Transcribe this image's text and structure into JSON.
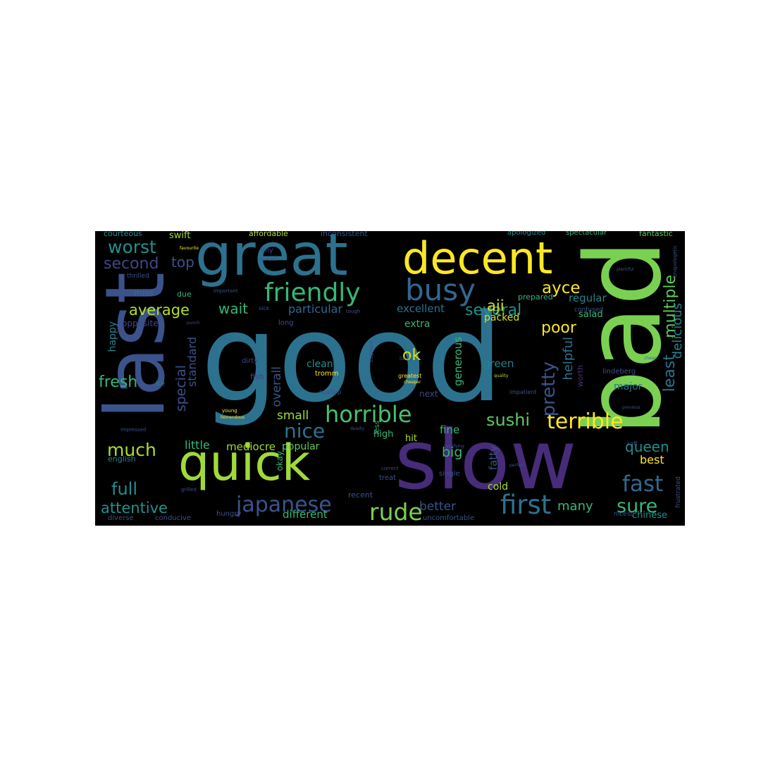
{
  "word_cloud": {
    "background": "#000000",
    "words": [
      {
        "text": "good",
        "color": "#2c728e"
      },
      {
        "text": "slow",
        "color": "#472c7a"
      },
      {
        "text": "bad",
        "color": "#7ad151"
      },
      {
        "text": "last",
        "color": "#3b528b"
      },
      {
        "text": "great",
        "color": "#2c728e"
      },
      {
        "text": "quick",
        "color": "#a0da39"
      },
      {
        "text": "decent",
        "color": "#fde725"
      },
      {
        "text": "busy",
        "color": "#31688e"
      },
      {
        "text": "friendly",
        "color": "#35b779"
      },
      {
        "text": "horrible",
        "color": "#4ac16d"
      },
      {
        "text": "terrible",
        "color": "#fde725"
      },
      {
        "text": "first",
        "color": "#2c728e"
      },
      {
        "text": "japanese",
        "color": "#3b528b"
      },
      {
        "text": "rude",
        "color": "#7ad151"
      },
      {
        "text": "nice",
        "color": "#2c728e"
      },
      {
        "text": "sure",
        "color": "#35b779"
      },
      {
        "text": "fast",
        "color": "#31688e"
      },
      {
        "text": "worst",
        "color": "#21908d"
      },
      {
        "text": "much",
        "color": "#aadc32"
      },
      {
        "text": "attentive",
        "color": "#21908d"
      },
      {
        "text": "full",
        "color": "#21908d"
      },
      {
        "text": "sushi",
        "color": "#5ec962"
      },
      {
        "text": "pretty",
        "color": "#3b528b"
      },
      {
        "text": "average",
        "color": "#b5de2b"
      },
      {
        "text": "fresh",
        "color": "#35b779"
      },
      {
        "text": "several",
        "color": "#21908d"
      },
      {
        "text": "second",
        "color": "#414487"
      },
      {
        "text": "top",
        "color": "#3b528b"
      },
      {
        "text": "poor",
        "color": "#fde725"
      },
      {
        "text": "wait",
        "color": "#35b779"
      },
      {
        "text": "ayce",
        "color": "#fde725"
      },
      {
        "text": "aji",
        "color": "#d8e219"
      },
      {
        "text": "ok",
        "color": "#d8e219"
      },
      {
        "text": "least",
        "color": "#2c728e"
      },
      {
        "text": "multiple",
        "color": "#5ec962"
      },
      {
        "text": "delicious",
        "color": "#26828e"
      },
      {
        "text": "special",
        "color": "#3b528b"
      },
      {
        "text": "big",
        "color": "#35b779"
      },
      {
        "text": "queen",
        "color": "#21908d"
      },
      {
        "text": "many",
        "color": "#35b779"
      },
      {
        "text": "better",
        "color": "#3b528b"
      },
      {
        "text": "small",
        "color": "#a0da39"
      },
      {
        "text": "helpful",
        "color": "#2c728e"
      },
      {
        "text": "particular",
        "color": "#31688e"
      },
      {
        "text": "excellent",
        "color": "#2c728e"
      },
      {
        "text": "standard",
        "color": "#3b528b"
      },
      {
        "text": "overall",
        "color": "#3b528b"
      },
      {
        "text": "little",
        "color": "#35b779"
      },
      {
        "text": "mediocre",
        "color": "#a0da39"
      },
      {
        "text": "popular",
        "color": "#5ec962"
      },
      {
        "text": "different",
        "color": "#35b779"
      },
      {
        "text": "regular",
        "color": "#26828e"
      },
      {
        "text": "best",
        "color": "#fde725"
      },
      {
        "text": "fine",
        "color": "#35b779"
      },
      {
        "text": "fatty",
        "color": "#3b528b"
      },
      {
        "text": "green",
        "color": "#26828e"
      },
      {
        "text": "packed",
        "color": "#d8e219"
      },
      {
        "text": "extra",
        "color": "#35b779"
      },
      {
        "text": "clean",
        "color": "#21908d"
      },
      {
        "text": "generous",
        "color": "#35b779"
      },
      {
        "text": "happy",
        "color": "#26828e"
      },
      {
        "text": "opposite",
        "color": "#414487"
      },
      {
        "text": "english",
        "color": "#26828e"
      },
      {
        "text": "okay",
        "color": "#35b779"
      },
      {
        "text": "next",
        "color": "#414487"
      },
      {
        "text": "high",
        "color": "#35b779"
      },
      {
        "text": "hit",
        "color": "#aadc32"
      },
      {
        "text": "cold",
        "color": "#aadc32"
      },
      {
        "text": "major",
        "color": "#2c728e"
      },
      {
        "text": "salad",
        "color": "#35b779"
      },
      {
        "text": "chinese",
        "color": "#21908d"
      },
      {
        "text": "uncomfortable",
        "color": "#3b528b"
      },
      {
        "text": "diverse",
        "color": "#3b528b"
      },
      {
        "text": "conducive",
        "color": "#3b528b"
      },
      {
        "text": "hungry",
        "color": "#3b528b"
      },
      {
        "text": "recent",
        "color": "#3b528b"
      },
      {
        "text": "treat",
        "color": "#3b528b"
      },
      {
        "text": "single",
        "color": "#3b528b"
      },
      {
        "text": "soft",
        "color": "#3b528b"
      },
      {
        "text": "lindeberg",
        "color": "#3b528b"
      },
      {
        "text": "worth",
        "color": "#472c7a"
      },
      {
        "text": "swift",
        "color": "#a0da39"
      },
      {
        "text": "courteous",
        "color": "#21908d"
      },
      {
        "text": "affordable",
        "color": "#aadc32"
      },
      {
        "text": "inconsistent",
        "color": "#3b528b"
      },
      {
        "text": "apologized",
        "color": "#21908d"
      },
      {
        "text": "spectacular",
        "color": "#35b779"
      },
      {
        "text": "fantastic",
        "color": "#5ec962"
      },
      {
        "text": "thrilled",
        "color": "#3b528b"
      },
      {
        "text": "miss",
        "color": "#2c728e"
      },
      {
        "text": "due",
        "color": "#35b779"
      },
      {
        "text": "tiny",
        "color": "#414487"
      },
      {
        "text": "prepared",
        "color": "#35b779"
      },
      {
        "text": "confused",
        "color": "#3b528b"
      },
      {
        "text": "dirty",
        "color": "#414487"
      },
      {
        "text": "fish",
        "color": "#414487"
      },
      {
        "text": "ice",
        "color": "#26828e"
      },
      {
        "text": "long",
        "color": "#3b528b"
      },
      {
        "text": "sick",
        "color": "#3b528b"
      },
      {
        "text": "scallop",
        "color": "#3b528b"
      },
      {
        "text": "tromm",
        "color": "#fde725"
      },
      {
        "text": "copious",
        "color": "#3b528b"
      },
      {
        "text": "greatest",
        "color": "#fde725"
      },
      {
        "text": "cheaper",
        "color": "#fde725"
      },
      {
        "text": "lucky",
        "color": "#414487"
      },
      {
        "text": "quality",
        "color": "#b5de2b"
      },
      {
        "text": "cheap",
        "color": "#2c728e"
      },
      {
        "text": "impressed",
        "color": "#3b528b"
      },
      {
        "text": "tough",
        "color": "#3b528b"
      },
      {
        "text": "grilled",
        "color": "#3b528b"
      },
      {
        "text": "frustrated",
        "color": "#3b528b"
      },
      {
        "text": "impatient",
        "color": "#3b528b"
      },
      {
        "text": "young",
        "color": "#fde725"
      },
      {
        "text": "horrendous",
        "color": "#fde725"
      },
      {
        "text": "less",
        "color": "#35b779"
      },
      {
        "text": "perfect",
        "color": "#3b528b"
      },
      {
        "text": "deadly",
        "color": "#3b528b"
      },
      {
        "text": "cramped",
        "color": "#3b528b"
      },
      {
        "text": "satisfying",
        "color": "#3b528b"
      },
      {
        "text": "correct",
        "color": "#3b528b"
      },
      {
        "text": "favourite",
        "color": "#fde725"
      },
      {
        "text": "punch",
        "color": "#3b528b"
      },
      {
        "text": "nicest",
        "color": "#3b528b"
      },
      {
        "text": "previous",
        "color": "#3b528b"
      },
      {
        "text": "important",
        "color": "#3b528b"
      },
      {
        "text": "unapologetic",
        "color": "#3b528b"
      },
      {
        "text": "plentiful",
        "color": "#3b528b"
      }
    ]
  }
}
